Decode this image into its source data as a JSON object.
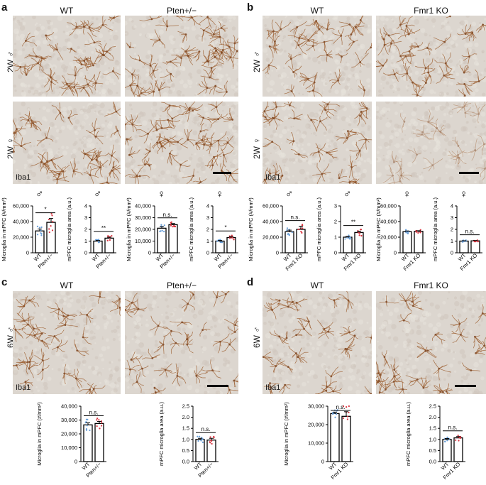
{
  "panels": {
    "a": {
      "letter": "a",
      "col1": "WT",
      "col2": "Pten+/−",
      "row1": "2W ♂",
      "row2": "2W ♀",
      "stain": "Iba1"
    },
    "b": {
      "letter": "b",
      "col1": "WT",
      "col2": "Fmr1 KO",
      "row1": "2W ♂",
      "row2": "2W ♀",
      "stain": "Iba1"
    },
    "c": {
      "letter": "c",
      "col1": "WT",
      "col2": "Pten+/−",
      "row1": "6W ♂",
      "stain": "Iba1"
    },
    "d": {
      "letter": "d",
      "col1": "WT",
      "col2": "Fmr1 KO",
      "row1": "6W ♂",
      "stain": "Iba1"
    }
  },
  "colors": {
    "wt_dot": "#6a9fd8",
    "mut_dot": "#d9343f",
    "tissue_bg": "#dcd6cf",
    "stain": "#9a5a2a"
  },
  "chart_data": [
    {
      "id": "a1",
      "type": "bar",
      "sex": "♂",
      "ylabel": "Microglia in mPFC (#/mm²)",
      "ylim": [
        0,
        60000
      ],
      "yticks": [
        "0",
        "20,000",
        "40,000",
        "60,000"
      ],
      "categories": [
        "WT",
        "Pten+/−"
      ],
      "values": [
        28000,
        39000
      ],
      "errors": [
        2500,
        5000
      ],
      "sig": "*"
    },
    {
      "id": "a2",
      "type": "bar",
      "sex": "♂",
      "ylabel": "mPFC microglia area (a.u.)",
      "ylim": [
        0,
        4
      ],
      "yticks": [
        "0",
        "1",
        "2",
        "3",
        "4"
      ],
      "categories": [
        "WT",
        "Pten+/−"
      ],
      "values": [
        1.0,
        1.25
      ],
      "errors": [
        0.05,
        0.08
      ],
      "sig": "**"
    },
    {
      "id": "a3",
      "type": "bar",
      "sex": "♀",
      "ylabel": "Microglia in mPFC (#/mm²)",
      "ylim": [
        0,
        40000
      ],
      "yticks": [
        "0",
        "10,000",
        "20,000",
        "30,000",
        "40,000"
      ],
      "categories": [
        "WT",
        "Pten+/−"
      ],
      "values": [
        21000,
        24000
      ],
      "errors": [
        1200,
        1000
      ],
      "sig": "n.s."
    },
    {
      "id": "a4",
      "type": "bar",
      "sex": "♀",
      "ylabel": "mPFC microglia area (a.u.)",
      "ylim": [
        0,
        4
      ],
      "yticks": [
        "0",
        "1",
        "2",
        "3",
        "4"
      ],
      "categories": [
        "WT",
        "Pten+/−"
      ],
      "values": [
        1.0,
        1.3
      ],
      "errors": [
        0.05,
        0.08
      ],
      "sig": "*"
    },
    {
      "id": "b1",
      "type": "bar",
      "sex": "♂",
      "ylabel": "Microglia in mPFC (#/mm²)",
      "ylim": [
        0,
        60000
      ],
      "yticks": [
        "0",
        "20,000",
        "40,000",
        "60,000"
      ],
      "categories": [
        "WT",
        "Fmr1 KO"
      ],
      "values": [
        27000,
        30000
      ],
      "errors": [
        2000,
        4000
      ],
      "sig": "n.s."
    },
    {
      "id": "b2",
      "type": "bar",
      "sex": "♂",
      "ylabel": "mPFC microglia area (a.u.)",
      "ylim": [
        0,
        3
      ],
      "yticks": [
        "0",
        "1",
        "2",
        "3"
      ],
      "categories": [
        "WT",
        "Fmr1 KO"
      ],
      "values": [
        1.0,
        1.3
      ],
      "errors": [
        0.05,
        0.08
      ],
      "sig": "**"
    },
    {
      "id": "b3",
      "type": "bar",
      "sex": "♀",
      "ylabel": "Microglia in mPFC (#/mm²)",
      "ylim": [
        0,
        60000
      ],
      "yticks": [
        "0",
        "20,000",
        "40,000",
        "60,000"
      ],
      "categories": [
        "WT",
        "Fmr1 KO"
      ],
      "values": [
        27000,
        27500
      ],
      "errors": [
        1000,
        800
      ],
      "sig": ""
    },
    {
      "id": "b4",
      "type": "bar",
      "sex": "♀",
      "ylabel": "mPFC microglia area (a.u.)",
      "ylim": [
        0,
        4
      ],
      "yticks": [
        "0",
        "1",
        "2",
        "3",
        "4"
      ],
      "categories": [
        "WT",
        "Fmr1 KO"
      ],
      "values": [
        1.0,
        1.02
      ],
      "errors": [
        0.03,
        0.03
      ],
      "sig": "n.s."
    },
    {
      "id": "c1",
      "type": "bar",
      "sex": "",
      "ylabel": "Microglia in mPFC (#/mm²)",
      "ylim": [
        0,
        40000
      ],
      "yticks": [
        "0",
        "10,000",
        "20,000",
        "30,000",
        "40,000"
      ],
      "categories": [
        "WT",
        "Pten+/−"
      ],
      "values": [
        26500,
        27500
      ],
      "errors": [
        1500,
        1500
      ],
      "sig": "n.s."
    },
    {
      "id": "c2",
      "type": "bar",
      "sex": "",
      "ylabel": "mPFC microglia area (a.u.)",
      "ylim": [
        0,
        2.5
      ],
      "yticks": [
        "0.0",
        "0.5",
        "1.0",
        "1.5",
        "2.0",
        "2.5"
      ],
      "categories": [
        "WT",
        "Pten+/−"
      ],
      "values": [
        1.0,
        0.97
      ],
      "errors": [
        0.05,
        0.08
      ],
      "sig": "n.s."
    },
    {
      "id": "d1",
      "type": "bar",
      "sex": "",
      "ylabel": "Microglia in mPFC (#/mm²)",
      "ylim": [
        0,
        30000
      ],
      "yticks": [
        "0",
        "10,000",
        "20,000",
        "30,000"
      ],
      "categories": [
        "WT",
        "Fmr1 KO"
      ],
      "values": [
        26000,
        24500
      ],
      "errors": [
        800,
        2500
      ],
      "sig": "n.s."
    },
    {
      "id": "d2",
      "type": "bar",
      "sex": "",
      "ylabel": "mPFC microglia area (a.u.)",
      "ylim": [
        0,
        2.5
      ],
      "yticks": [
        "0.0",
        "0.5",
        "1.0",
        "1.5",
        "2.0",
        "2.5"
      ],
      "categories": [
        "WT",
        "Fmr1 KO"
      ],
      "values": [
        1.0,
        1.07
      ],
      "errors": [
        0.04,
        0.06
      ],
      "sig": "n.s."
    }
  ]
}
